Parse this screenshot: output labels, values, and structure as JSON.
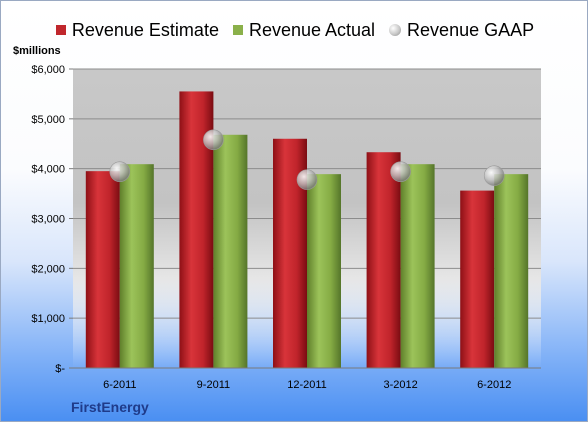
{
  "chart_data": {
    "type": "bar",
    "categories": [
      "6-2011",
      "9-2011",
      "12-2011",
      "3-2012",
      "6-2012"
    ],
    "series": [
      {
        "name": "Revenue Estimate",
        "kind": "bar",
        "color": "#c0272d",
        "values": [
          3950,
          5550,
          4600,
          4330,
          3560
        ]
      },
      {
        "name": "Revenue Actual",
        "kind": "bar",
        "color": "#8ab04a",
        "values": [
          4090,
          4680,
          3890,
          4090,
          3890
        ]
      },
      {
        "name": "Revenue GAAP",
        "kind": "marker",
        "color": "#bdbdbd",
        "values": [
          3940,
          4580,
          3780,
          3940,
          3860
        ]
      }
    ],
    "ylabel": "$millions",
    "ylim": [
      0,
      6000
    ],
    "yticks": [
      0,
      1000,
      2000,
      3000,
      4000,
      5000,
      6000
    ],
    "ytick_labels": [
      "$-",
      "$1,000",
      "$2,000",
      "$3,000",
      "$4,000",
      "$5,000",
      "$6,000"
    ],
    "grid": true,
    "legend_position": "top"
  },
  "footer": {
    "company": "FirstEnergy"
  }
}
